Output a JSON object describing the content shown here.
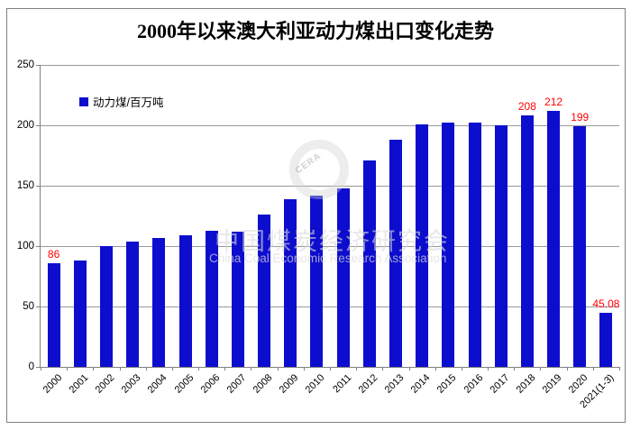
{
  "title": "2000年以来澳大利亚动力煤出口变化走势",
  "legend": {
    "label": "动力煤/百万吨"
  },
  "watermark": {
    "logo_text": "CERA",
    "cn": "中国煤炭经济研究会",
    "en": "China Coal Economic Research Association"
  },
  "colors": {
    "bar": "#0d0dce",
    "point_label": "#ff0000",
    "grid": "#999999",
    "axis": "#808080",
    "border": "#7f7f7f"
  },
  "chart_data": {
    "type": "bar",
    "title": "2000年以来澳大利亚动力煤出口变化走势",
    "series_name": "动力煤/百万吨",
    "categories": [
      "2000",
      "2001",
      "2002",
      "2003",
      "2004",
      "2005",
      "2006",
      "2007",
      "2008",
      "2009",
      "2010",
      "2011",
      "2012",
      "2013",
      "2014",
      "2015",
      "2016",
      "2017",
      "2018",
      "2019",
      "2020",
      "2021(1-3)"
    ],
    "values": [
      86,
      88,
      100,
      104,
      107,
      109,
      113,
      112,
      126,
      139,
      142,
      148,
      171,
      188,
      201,
      202,
      202,
      200,
      208,
      212,
      199,
      45.08
    ],
    "point_labels": [
      "86",
      null,
      null,
      null,
      null,
      null,
      null,
      null,
      null,
      null,
      null,
      null,
      null,
      null,
      null,
      null,
      null,
      null,
      "208",
      "212",
      "199",
      "45.08"
    ],
    "xlabel": "",
    "ylabel": "",
    "ylim": [
      0,
      250
    ],
    "yticks": [
      0,
      50,
      100,
      150,
      200,
      250
    ],
    "grid": true,
    "legend_position": "top-left"
  }
}
